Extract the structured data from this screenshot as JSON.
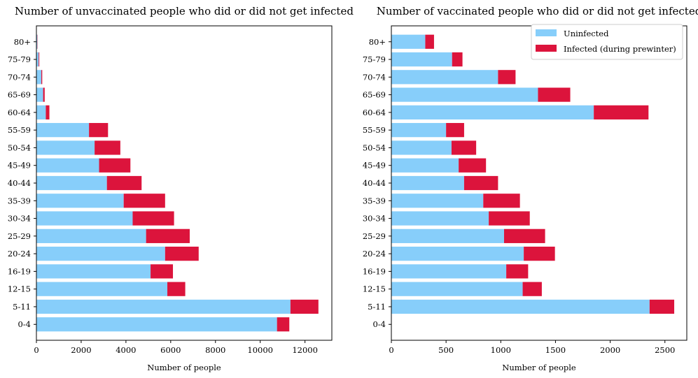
{
  "chart_data": [
    {
      "type": "bar",
      "orientation": "horizontal",
      "stacked": true,
      "title": "Number of unvaccinated people who did or did not get infected",
      "xlabel": "Number of people",
      "ylabel": "",
      "xlim": [
        0,
        13200
      ],
      "xticks": [
        0,
        2000,
        4000,
        6000,
        8000,
        10000,
        12000
      ],
      "categories": [
        "0-4",
        "5-11",
        "12-15",
        "16-19",
        "20-24",
        "25-29",
        "30-34",
        "35-39",
        "40-44",
        "45-49",
        "50-54",
        "55-59",
        "60-64",
        "65-69",
        "70-74",
        "75-79",
        "80+"
      ],
      "series": [
        {
          "name": "Uninfected",
          "color": "#87cefa",
          "values": [
            10750,
            11350,
            5850,
            5100,
            5750,
            4900,
            4300,
            3900,
            3150,
            2800,
            2600,
            2350,
            420,
            300,
            220,
            100,
            40
          ]
        },
        {
          "name": "Infected (during prewinter)",
          "color": "#dc143c",
          "values": [
            550,
            1250,
            800,
            1000,
            1500,
            1950,
            1850,
            1850,
            1550,
            1400,
            1150,
            850,
            160,
            70,
            40,
            30,
            10
          ]
        }
      ],
      "grid": false,
      "legend": "none"
    },
    {
      "type": "bar",
      "orientation": "horizontal",
      "stacked": true,
      "title": "Number of vaccinated people who did or did not get infected",
      "xlabel": "Number of people",
      "ylabel": "",
      "xlim": [
        0,
        2700
      ],
      "xticks": [
        0,
        500,
        1000,
        1500,
        2000,
        2500
      ],
      "categories": [
        "0-4",
        "5-11",
        "12-15",
        "16-19",
        "20-24",
        "25-29",
        "30-34",
        "35-39",
        "40-44",
        "45-49",
        "50-54",
        "55-59",
        "60-64",
        "65-69",
        "70-74",
        "75-79",
        "80+"
      ],
      "series": [
        {
          "name": "Uninfected",
          "color": "#87cefa",
          "values": [
            0,
            2360,
            1200,
            1050,
            1210,
            1030,
            890,
            840,
            665,
            615,
            550,
            500,
            1850,
            1340,
            975,
            555,
            310
          ]
        },
        {
          "name": "Infected (during prewinter)",
          "color": "#dc143c",
          "values": [
            0,
            225,
            175,
            200,
            285,
            375,
            375,
            335,
            310,
            250,
            225,
            165,
            500,
            295,
            160,
            95,
            80
          ]
        }
      ],
      "grid": false,
      "legend": "top-right"
    }
  ]
}
